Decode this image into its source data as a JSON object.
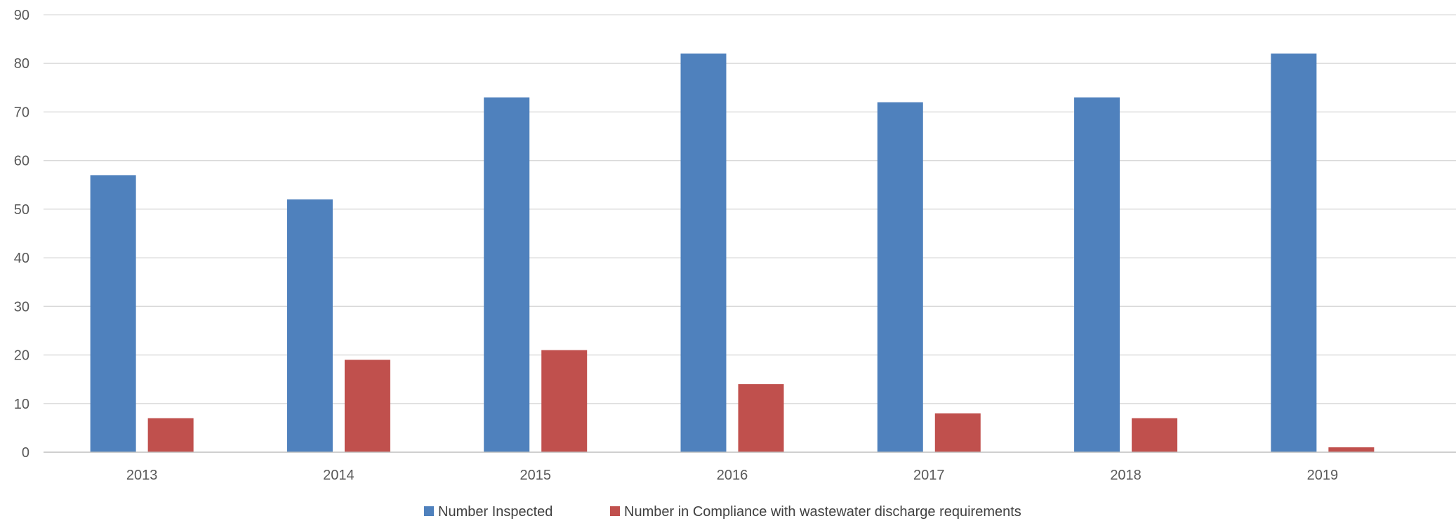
{
  "chart_data": {
    "type": "bar",
    "title": "",
    "xlabel": "",
    "ylabel": "",
    "categories": [
      "2013",
      "2014",
      "2015",
      "2016",
      "2017",
      "2018",
      "2019"
    ],
    "series": [
      {
        "name": "Number Inspected",
        "color": "#4f81bd",
        "values": [
          57,
          52,
          73,
          82,
          72,
          73,
          82
        ]
      },
      {
        "name": "Number in Compliance with wastewater discharge requirements",
        "color": "#c0504d",
        "values": [
          7,
          19,
          21,
          14,
          8,
          7,
          1
        ]
      }
    ],
    "ylim": [
      0,
      90
    ],
    "yticks": [
      0,
      10,
      20,
      30,
      40,
      50,
      60,
      70,
      80,
      90
    ],
    "grid": true,
    "legend_position": "bottom"
  }
}
